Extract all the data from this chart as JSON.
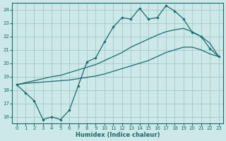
{
  "xlabel": "Humidex (Indice chaleur)",
  "bg_color": "#cce8e8",
  "grid_color": "#aacccc",
  "line_color": "#1a6b6b",
  "xlim": [
    -0.5,
    23.5
  ],
  "ylim": [
    15.5,
    24.5
  ],
  "xticks": [
    0,
    1,
    2,
    3,
    4,
    5,
    6,
    7,
    8,
    9,
    10,
    11,
    12,
    13,
    14,
    15,
    16,
    17,
    18,
    19,
    20,
    21,
    22,
    23
  ],
  "yticks": [
    16,
    17,
    18,
    19,
    20,
    21,
    22,
    23,
    24
  ],
  "curve1_x": [
    0,
    1,
    2,
    3,
    4,
    5,
    6,
    7,
    8,
    9,
    10,
    11,
    12,
    13,
    14,
    15,
    16,
    17,
    18,
    19,
    20,
    21,
    22,
    23
  ],
  "curve1_y": [
    18.4,
    17.8,
    17.2,
    15.8,
    16.0,
    15.8,
    16.5,
    18.3,
    20.1,
    20.4,
    21.6,
    22.7,
    23.4,
    23.3,
    24.1,
    23.3,
    23.4,
    24.3,
    23.9,
    23.3,
    22.3,
    22.0,
    21.1,
    20.5
  ],
  "curve2_x": [
    0,
    1,
    2,
    3,
    4,
    5,
    6,
    7,
    8,
    9,
    10,
    11,
    12,
    13,
    14,
    15,
    16,
    17,
    18,
    19,
    20,
    21,
    22,
    23
  ],
  "curve2_y": [
    18.4,
    18.5,
    18.55,
    18.6,
    18.65,
    18.7,
    18.75,
    18.85,
    18.95,
    19.05,
    19.2,
    19.4,
    19.6,
    19.8,
    20.0,
    20.2,
    20.5,
    20.8,
    21.0,
    21.2,
    21.2,
    21.0,
    20.7,
    20.5
  ],
  "curve3_x": [
    0,
    1,
    2,
    3,
    4,
    5,
    6,
    7,
    8,
    9,
    10,
    11,
    12,
    13,
    14,
    15,
    16,
    17,
    18,
    19,
    20,
    21,
    22,
    23
  ],
  "curve3_y": [
    18.4,
    18.55,
    18.7,
    18.85,
    19.0,
    19.1,
    19.3,
    19.5,
    19.7,
    19.9,
    20.2,
    20.5,
    20.8,
    21.2,
    21.5,
    21.8,
    22.1,
    22.35,
    22.5,
    22.6,
    22.35,
    22.0,
    21.5,
    20.5
  ]
}
